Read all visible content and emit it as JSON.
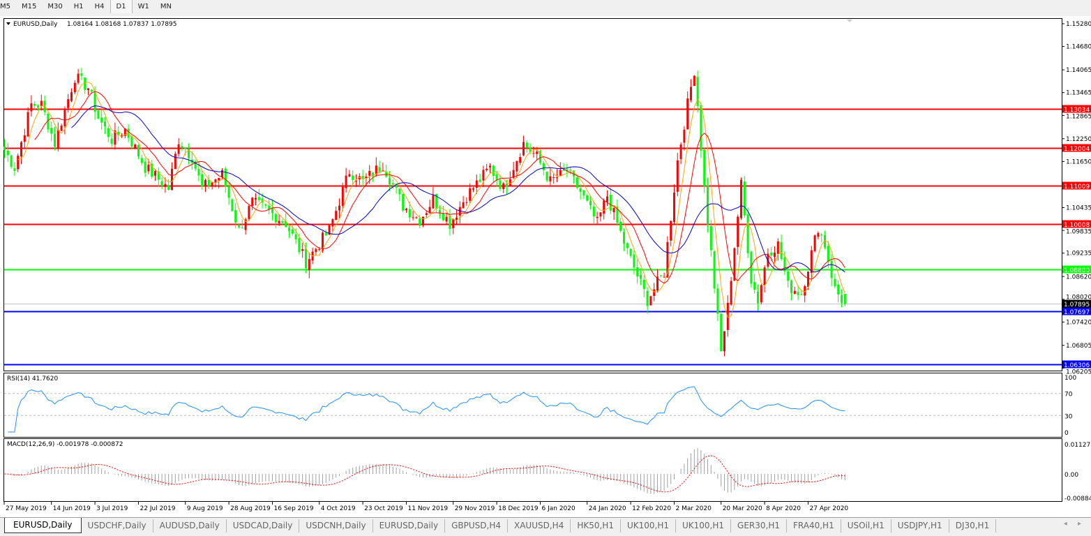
{
  "timeframes": {
    "items": [
      "M5",
      "M15",
      "M30",
      "H1",
      "H4",
      "D1",
      "W1",
      "MN"
    ],
    "active": "D1"
  },
  "main_chart": {
    "symbol_label": "EURUSD,Daily",
    "ohlc": "1.08164 1.08168 1.07837 1.07895",
    "last_candle": {
      "open": 1.08164,
      "high": 1.08168,
      "low": 1.07837,
      "close": 1.07895
    },
    "price_ticks": [
      "1.15280",
      "1.14680",
      "1.14065",
      "1.13465",
      "1.12865",
      "1.12250",
      "1.11650",
      "1.10435",
      "1.09835",
      "1.09235",
      "1.08620",
      "1.08020",
      "1.07420",
      "1.06805",
      "1.06205"
    ],
    "levels": [
      {
        "price": "1.13034",
        "color": "#ff0000",
        "text_color": "#ffffff"
      },
      {
        "price": "1.12004",
        "color": "#ff0000",
        "text_color": "#ffffff"
      },
      {
        "price": "1.11009",
        "color": "#ff0000",
        "text_color": "#ffffff"
      },
      {
        "price": "1.10008",
        "color": "#ff0000",
        "text_color": "#ffffff"
      },
      {
        "price": "1.08800",
        "color": "#00ff00",
        "text_color": "#ffffff"
      },
      {
        "price": "1.07697",
        "color": "#0000ff",
        "text_color": "#ffffff"
      },
      {
        "price": "1.06306",
        "color": "#0000ff",
        "text_color": "#ffffff"
      }
    ],
    "current_price": {
      "price": "1.07895",
      "color": "#000000",
      "line_color": "#c0c0c0"
    },
    "colors": {
      "bull": "#ff0000",
      "bear": "#00ff00",
      "ma_fast": "#ffa500",
      "ma_mid": "#ff0000",
      "ma_slow": "#0000c8"
    }
  },
  "chart_data": {
    "type": "candlestick",
    "symbol": "EURUSD",
    "timeframe": "Daily",
    "approx_closes": [
      [
        "2019-05-27",
        1.1195
      ],
      [
        "2019-05-30",
        1.1149
      ],
      [
        "2019-06-06",
        1.1315
      ],
      [
        "2019-06-11",
        1.1315
      ],
      [
        "2019-06-17",
        1.1213
      ],
      [
        "2019-06-25",
        1.1388
      ],
      [
        "2019-07-01",
        1.136
      ],
      [
        "2019-07-04",
        1.128
      ],
      [
        "2019-07-10",
        1.1223
      ],
      [
        "2019-07-16",
        1.125
      ],
      [
        "2019-07-24",
        1.115
      ],
      [
        "2019-08-02",
        1.1094
      ],
      [
        "2019-08-07",
        1.1223
      ],
      [
        "2019-08-13",
        1.1177
      ],
      [
        "2019-08-16",
        1.1094
      ],
      [
        "2019-08-26",
        1.113
      ],
      [
        "2019-09-02",
        1.0984
      ],
      [
        "2019-09-06",
        1.1057
      ],
      [
        "2019-09-12",
        1.104
      ],
      [
        "2019-09-20",
        1.1002
      ],
      [
        "2019-09-30",
        1.0901
      ],
      [
        "2019-10-09",
        1.0984
      ],
      [
        "2019-10-17",
        1.114
      ],
      [
        "2019-10-23",
        1.1112
      ],
      [
        "2019-10-31",
        1.1158
      ],
      [
        "2019-11-08",
        1.1048
      ],
      [
        "2019-11-15",
        1.1011
      ],
      [
        "2019-11-21",
        1.1066
      ],
      [
        "2019-11-28",
        1.1002
      ],
      [
        "2019-12-05",
        1.1075
      ],
      [
        "2019-12-16",
        1.1149
      ],
      [
        "2019-12-20",
        1.1094
      ],
      [
        "2019-12-30",
        1.1213
      ],
      [
        "2020-01-03",
        1.1177
      ],
      [
        "2020-01-09",
        1.1112
      ],
      [
        "2020-01-16",
        1.114
      ],
      [
        "2020-01-22",
        1.1085
      ],
      [
        "2020-01-29",
        1.1002
      ],
      [
        "2020-02-03",
        1.1075
      ],
      [
        "2020-02-11",
        1.0928
      ],
      [
        "2020-02-19",
        1.08
      ],
      [
        "2020-02-26",
        1.0873
      ],
      [
        "2020-03-03",
        1.1167
      ],
      [
        "2020-03-06",
        1.1315
      ],
      [
        "2020-03-10",
        1.1407
      ],
      [
        "2020-03-11",
        1.1315
      ],
      [
        "2020-03-13",
        1.1094
      ],
      [
        "2020-03-18",
        1.0837
      ],
      [
        "2020-03-20",
        1.0662
      ],
      [
        "2020-03-24",
        1.0781
      ],
      [
        "2020-03-30",
        1.1103
      ],
      [
        "2020-04-02",
        1.0855
      ],
      [
        "2020-04-06",
        1.08
      ],
      [
        "2020-04-09",
        1.0928
      ],
      [
        "2020-04-14",
        1.0946
      ],
      [
        "2020-04-17",
        1.0837
      ],
      [
        "2020-04-23",
        1.0818
      ],
      [
        "2020-04-30",
        1.0993
      ],
      [
        "2020-05-04",
        1.0946
      ],
      [
        "2020-05-07",
        1.0828
      ],
      [
        "2020-05-12",
        1.07895
      ]
    ],
    "x_tick_labels": [
      "27 May 2019",
      "14 Jun 2019",
      "3 Jul 2019",
      "22 Jul 2019",
      "9 Aug 2019",
      "28 Aug 2019",
      "16 Sep 2019",
      "4 Oct 2019",
      "23 Oct 2019",
      "11 Nov 2019",
      "29 Nov 2019",
      "18 Dec 2019",
      "6 Jan 2020",
      "24 Jan 2020",
      "12 Feb 2020",
      "2 Mar 2020",
      "20 Mar 2020",
      "8 Apr 2020",
      "27 Apr 2020"
    ],
    "y_range": [
      1.06205,
      1.1528
    ]
  },
  "rsi": {
    "label": "RSI(14) 41.7620",
    "ticks": [
      "100",
      "70",
      "30",
      "0"
    ],
    "levels": [
      70,
      30
    ],
    "color": "#1e90ff"
  },
  "macd": {
    "label": "MACD(12,26,9) -0.001978 -0.000872",
    "ticks": [
      "0.011277",
      "0.00",
      "-0.008845"
    ],
    "hist_color": "#a0a0a0",
    "signal_color": "#ff0000"
  },
  "symbol_tabs": {
    "items": [
      "EURUSD,Daily",
      "USDCHF,Daily",
      "AUDUSD,Daily",
      "USDCAD,Daily",
      "USDCNH,Daily",
      "EURUSD,Daily",
      "GBPUSD,H4",
      "XAUUSD,H4",
      "HK50,H1",
      "UK100,H1",
      "UK100,H1",
      "GER30,H1",
      "FRA40,H1",
      "USOil,H1",
      "USDJPY,H1",
      "DJ30,H1"
    ],
    "active_index": 0,
    "nav": "◂ ▸"
  }
}
